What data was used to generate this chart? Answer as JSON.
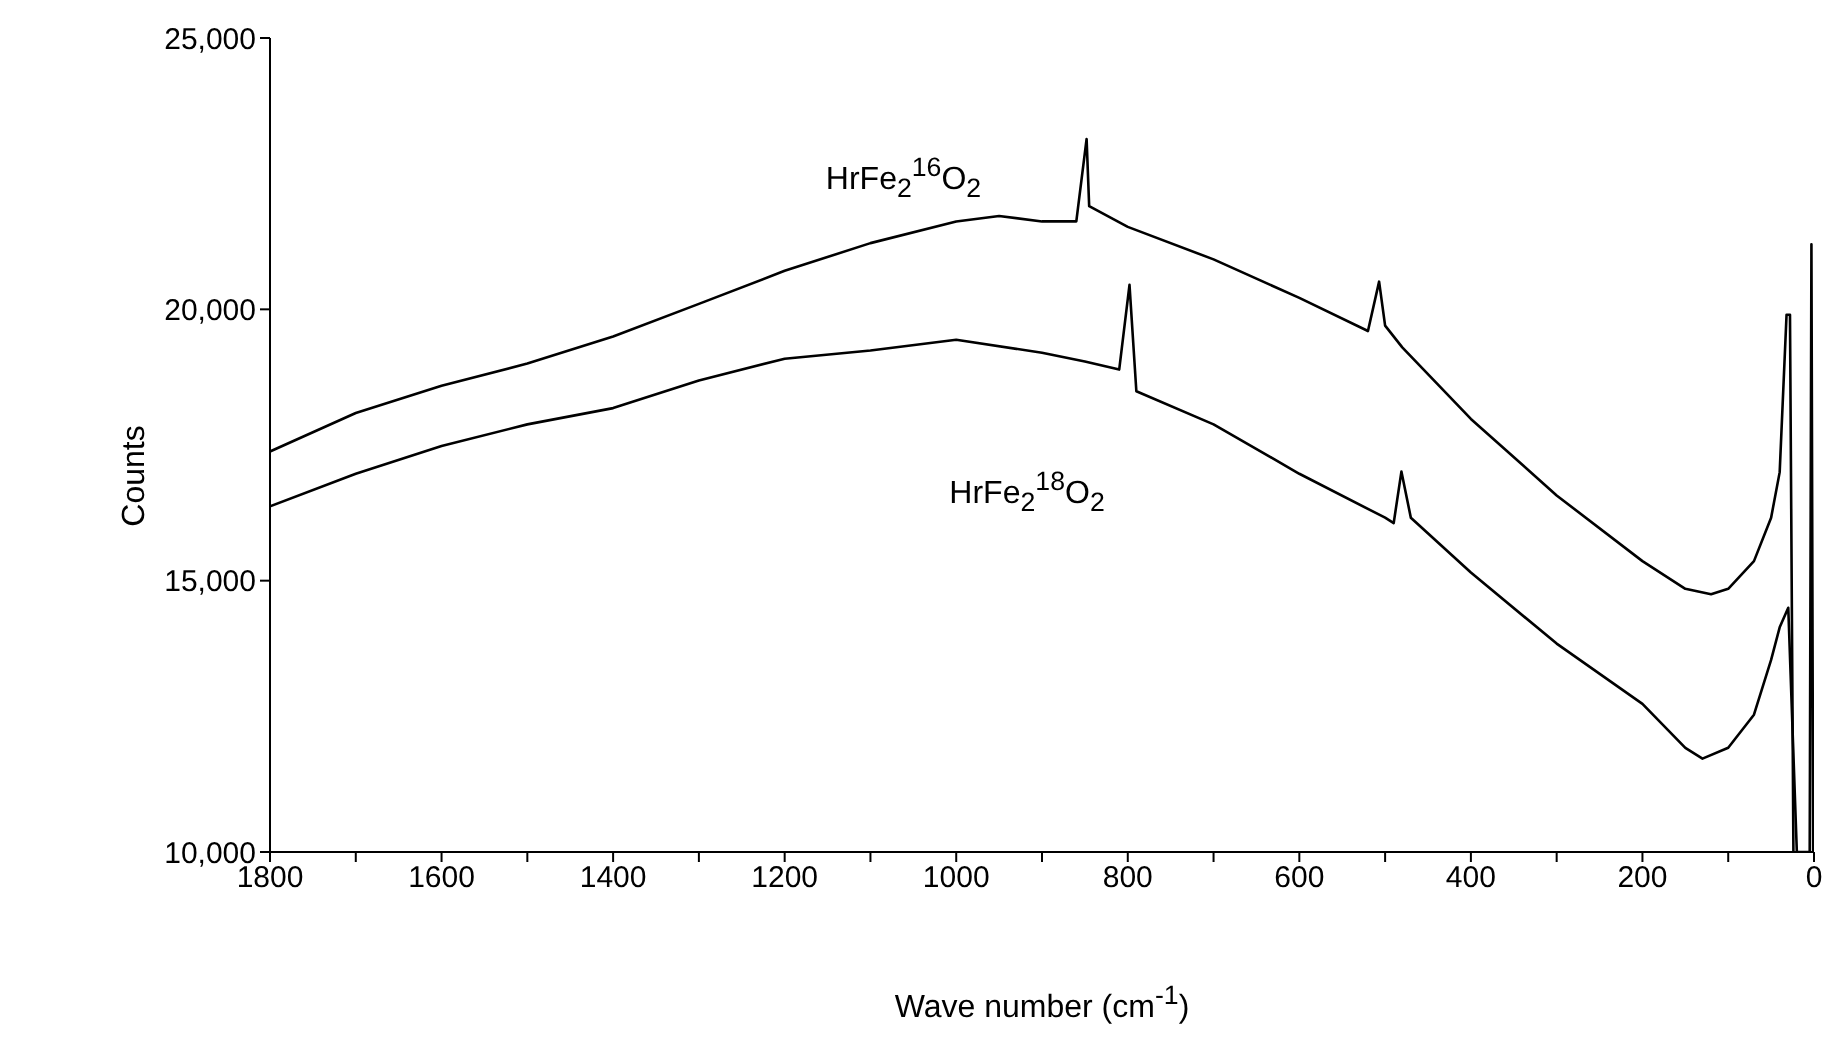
{
  "chart_data": {
    "type": "line",
    "xlabel": "Wave number (cm$^{-1}$)",
    "ylabel": "Counts",
    "xlim": [
      1800,
      0
    ],
    "ylim": [
      10000,
      25000
    ],
    "xticks": [
      1800,
      {
        "value": 1700,
        "label": null
      },
      1600,
      {
        "value": 1500,
        "label": null
      },
      1400,
      {
        "value": 1300,
        "label": null
      },
      1200,
      {
        "value": 1100,
        "label": null
      },
      1000,
      {
        "value": 900,
        "label": null
      },
      800,
      {
        "value": 700,
        "label": null
      },
      600,
      {
        "value": 500,
        "label": null
      },
      400,
      {
        "value": 300,
        "label": null
      },
      200,
      {
        "value": 100,
        "label": null
      },
      0
    ],
    "yticks": [
      {
        "value": 10000,
        "label": "10,000"
      },
      {
        "value": 15000,
        "label": "15,000"
      },
      {
        "value": 20000,
        "label": "20,000"
      },
      {
        "value": 25000,
        "label": "25,000"
      }
    ],
    "marker": "none",
    "line_style": "solid",
    "series": [
      {
        "name": "HrFe$_{2}$$^{16}$O$_{2}$",
        "color": "#000000",
        "x": [
          1800,
          1700,
          1600,
          1500,
          1400,
          1300,
          1200,
          1100,
          1000,
          950,
          900,
          860,
          848,
          845,
          800,
          700,
          600,
          520,
          507,
          500,
          480,
          400,
          300,
          200,
          150,
          120,
          100,
          70,
          50,
          40,
          32,
          28,
          24
        ],
        "values": [
          17380,
          18090,
          18590,
          19000,
          19500,
          20100,
          20710,
          21220,
          21620,
          21720,
          21620,
          21620,
          23140,
          21900,
          21520,
          20920,
          20210,
          19600,
          20510,
          19700,
          19300,
          17980,
          16570,
          15360,
          14850,
          14750,
          14850,
          15360,
          16160,
          17000,
          19900,
          19900,
          10000
        ]
      },
      {
        "name": "HrFe$_{2}$$^{18}$O$_{2}$",
        "color": "#000000",
        "x": [
          1800,
          1700,
          1600,
          1500,
          1400,
          1300,
          1200,
          1100,
          1000,
          900,
          850,
          810,
          798,
          790,
          700,
          600,
          500,
          490,
          481,
          470,
          400,
          300,
          200,
          150,
          130,
          100,
          70,
          50,
          40,
          30,
          20,
          5,
          3,
          1
        ],
        "values": [
          16370,
          16970,
          17480,
          17880,
          18180,
          18690,
          19090,
          19240,
          19440,
          19200,
          19040,
          18890,
          20450,
          18490,
          17880,
          16970,
          16160,
          16060,
          17010,
          16160,
          15150,
          13840,
          12730,
          11920,
          11720,
          11920,
          12530,
          13540,
          14140,
          14500,
          10000,
          10000,
          21200,
          10000
        ]
      }
    ]
  }
}
